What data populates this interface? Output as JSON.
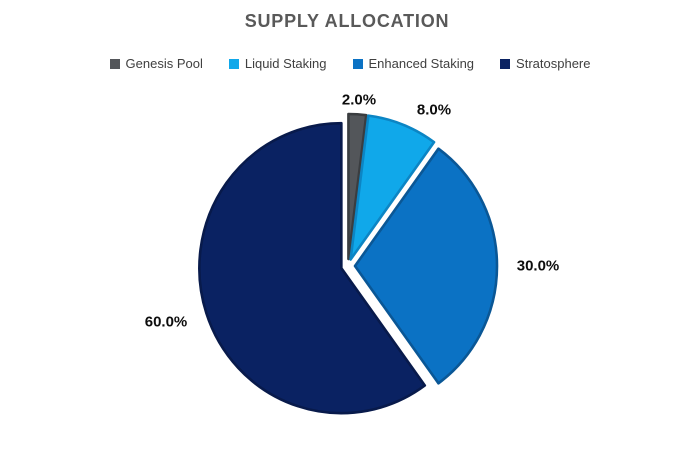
{
  "chart_title": "SUPPLY ALLOCATION",
  "chart_data": {
    "type": "pie",
    "title": "SUPPLY ALLOCATION",
    "categories": [
      "Genesis Pool",
      "Liquid Staking",
      "Enhanced Staking",
      "Stratosphere"
    ],
    "values": [
      2.0,
      8.0,
      30.0,
      60.0
    ],
    "labels": [
      "2.0%",
      "8.0%",
      "30.0%",
      "60.0%"
    ],
    "colors": [
      "#53565A",
      "#10A8EA",
      "#0B72C4",
      "#0A2262"
    ],
    "border_colors": [
      "#3A3D40",
      "#0C85C4",
      "#0A5796",
      "#081A4B"
    ],
    "slice_ids": [
      "genesis-pool",
      "liquid-staking",
      "enhanced-staking",
      "stratosphere"
    ],
    "legend_position": "top",
    "start_angle_deg": 0,
    "clockwise": true,
    "exploded": true,
    "title_color": "#595959",
    "legend_text_color": "#404040",
    "label_text_color": "#0d0d0d",
    "background": "#ffffff"
  }
}
